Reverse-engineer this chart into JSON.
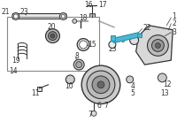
{
  "background": "#ffffff",
  "figure_size": [
    2.0,
    1.47
  ],
  "dpi": 100,
  "title": "",
  "parts": {
    "highlight_color": "#4db8d4",
    "line_color": "#333333",
    "box_color": "#cccccc",
    "label_color": "#222222"
  }
}
